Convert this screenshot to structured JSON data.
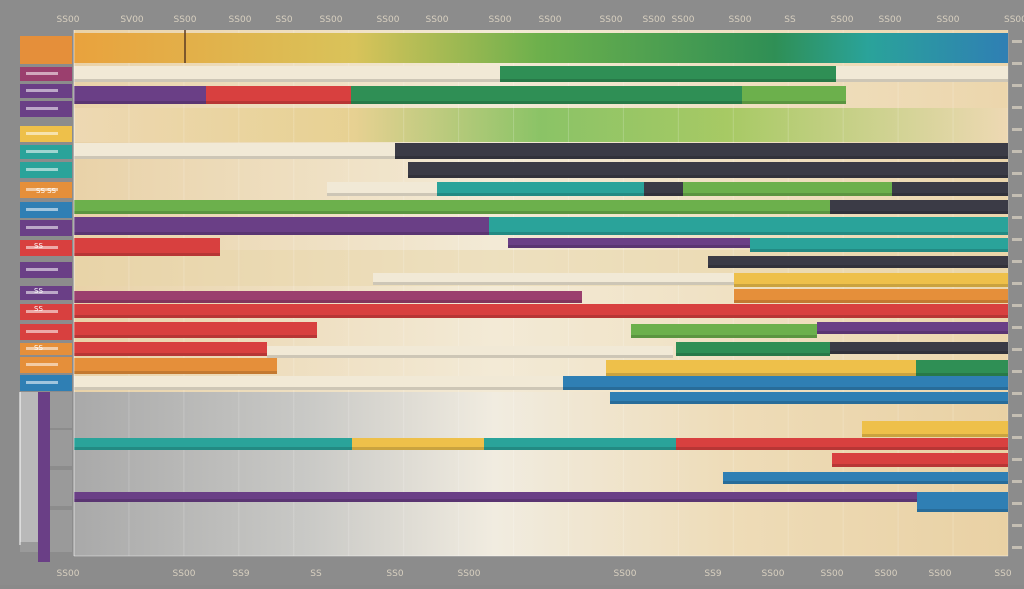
{
  "chart_data": {
    "type": "bar",
    "subtype": "gantt-style horizontal bars",
    "title": "",
    "xlabel": "",
    "ylabel": "",
    "grid": true,
    "legend": "none",
    "top_tick_labels": [
      "SS00",
      "SV00",
      "SS00",
      "SS00",
      "SS0",
      "SS00",
      "SS00",
      "SS00",
      "SS00",
      "SS00",
      "SS00",
      "SS00",
      "SS00",
      "SS00",
      "SS",
      "SS00",
      "SS00",
      "SS00"
    ],
    "bottom_tick_labels": [
      "SS00",
      "SS00",
      "SS9",
      "SS",
      "SS0",
      "SS00",
      "SS00",
      "SS9",
      "SS00",
      "SS00",
      "SS00",
      "SS00",
      "SS0"
    ],
    "row_label_text": [
      "SS SS",
      "SS",
      "SS",
      "SS",
      "SS"
    ],
    "palette": {
      "orange": "#e58f3a",
      "yellow": "#eec04a",
      "green": "#6cb04c",
      "dark_green": "#2f8f55",
      "teal": "#2aa39a",
      "blue": "#2f7fb4",
      "purple": "#6a3f86",
      "magenta": "#9b3f6e",
      "red": "#d8403f",
      "cream": "#f1e9d6",
      "charcoal": "#3b3b46",
      "gray": "#9a9a9a",
      "sand": "#eed9b4"
    },
    "row_colors": [
      "orange",
      "magenta",
      "purple",
      "purple",
      "yellow",
      "teal",
      "teal",
      "orange",
      "blue",
      "purple",
      "red",
      "purple",
      "purple",
      "red",
      "red",
      "orange",
      "orange",
      "blue",
      "gray",
      "gray",
      "gray",
      "gray"
    ]
  }
}
